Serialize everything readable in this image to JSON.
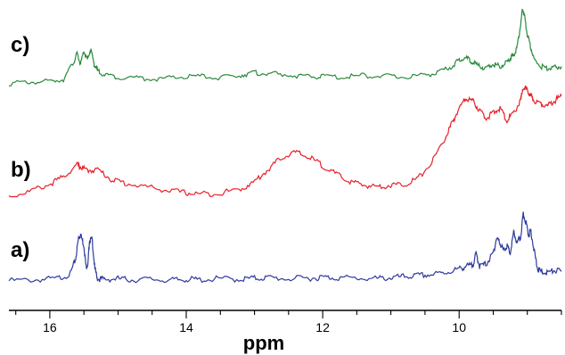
{
  "chart_data": {
    "type": "line",
    "xlabel": "ppm",
    "x_reversed": true,
    "xlim": [
      16.6,
      8.5
    ],
    "x_tick_labels": [
      "16",
      "14",
      "12",
      "10"
    ],
    "series": [
      {
        "label": "a)",
        "color": "#2f3a9e",
        "x": [
          16.6,
          16.2,
          15.9,
          15.7,
          15.62,
          15.58,
          15.55,
          15.5,
          15.47,
          15.44,
          15.42,
          15.38,
          15.34,
          15.3,
          15.2,
          15.0,
          14.8,
          14.5,
          14.2,
          14.0,
          13.8,
          13.5,
          13.2,
          13.0,
          12.8,
          12.5,
          12.2,
          12.0,
          11.8,
          11.5,
          11.2,
          11.0,
          10.8,
          10.6,
          10.4,
          10.2,
          10.0,
          9.9,
          9.8,
          9.75,
          9.7,
          9.6,
          9.5,
          9.45,
          9.4,
          9.35,
          9.3,
          9.25,
          9.2,
          9.15,
          9.1,
          9.06,
          9.02,
          8.98,
          8.95,
          8.9,
          8.85,
          8.8,
          8.7,
          8.6,
          8.5
        ],
        "y": [
          0.02,
          0.04,
          0.06,
          0.15,
          0.45,
          0.85,
          0.92,
          0.7,
          0.3,
          0.35,
          0.8,
          0.82,
          0.25,
          0.06,
          0.05,
          0.06,
          0.04,
          0.05,
          0.03,
          0.05,
          0.04,
          0.06,
          0.05,
          0.07,
          0.08,
          0.06,
          0.07,
          0.09,
          0.08,
          0.07,
          0.06,
          0.08,
          0.1,
          0.12,
          0.14,
          0.18,
          0.25,
          0.3,
          0.32,
          0.55,
          0.3,
          0.35,
          0.55,
          0.85,
          0.75,
          0.6,
          0.7,
          0.55,
          0.95,
          0.75,
          0.85,
          1.3,
          1.15,
          0.9,
          1.0,
          0.6,
          0.25,
          0.2,
          0.18,
          0.22,
          0.2
        ]
      },
      {
        "label": "b)",
        "color": "#e8202a",
        "x": [
          16.6,
          16.3,
          16.0,
          15.8,
          15.6,
          15.55,
          15.45,
          15.3,
          15.1,
          14.9,
          14.6,
          14.3,
          14.0,
          13.8,
          13.5,
          13.2,
          13.0,
          12.8,
          12.6,
          12.4,
          12.2,
          12.0,
          11.8,
          11.6,
          11.4,
          11.2,
          11.0,
          10.8,
          10.6,
          10.4,
          10.2,
          10.1,
          10.0,
          9.9,
          9.8,
          9.7,
          9.6,
          9.5,
          9.4,
          9.3,
          9.2,
          9.1,
          9.05,
          9.0,
          8.95,
          8.9,
          8.8,
          8.7,
          8.6,
          8.5
        ],
        "y": [
          0.05,
          0.15,
          0.3,
          0.45,
          0.7,
          0.65,
          0.58,
          0.6,
          0.4,
          0.32,
          0.25,
          0.18,
          0.12,
          0.1,
          0.12,
          0.2,
          0.35,
          0.6,
          0.85,
          0.95,
          0.85,
          0.68,
          0.5,
          0.35,
          0.28,
          0.25,
          0.28,
          0.3,
          0.42,
          0.75,
          1.25,
          1.55,
          1.85,
          2.05,
          2.0,
          1.8,
          1.65,
          1.75,
          1.85,
          1.6,
          1.75,
          2.0,
          2.3,
          2.2,
          2.1,
          2.0,
          1.95,
          1.9,
          2.0,
          2.1
        ]
      },
      {
        "label": "c)",
        "color": "#2a8a3c",
        "x": [
          16.6,
          16.3,
          16.0,
          15.8,
          15.65,
          15.6,
          15.55,
          15.5,
          15.45,
          15.4,
          15.35,
          15.3,
          15.2,
          15.0,
          14.7,
          14.4,
          14.1,
          13.8,
          13.5,
          13.2,
          13.0,
          12.8,
          12.5,
          12.2,
          12.0,
          11.7,
          11.4,
          11.1,
          10.8,
          10.5,
          10.3,
          10.1,
          10.0,
          9.9,
          9.8,
          9.7,
          9.6,
          9.5,
          9.4,
          9.3,
          9.25,
          9.2,
          9.15,
          9.1,
          9.07,
          9.04,
          9.0,
          8.95,
          8.9,
          8.8,
          8.7,
          8.6,
          8.5
        ],
        "y": [
          0.05,
          0.08,
          0.1,
          0.15,
          0.55,
          0.75,
          0.5,
          0.8,
          0.6,
          0.85,
          0.5,
          0.35,
          0.25,
          0.2,
          0.18,
          0.15,
          0.2,
          0.22,
          0.18,
          0.25,
          0.3,
          0.28,
          0.25,
          0.2,
          0.22,
          0.2,
          0.24,
          0.22,
          0.2,
          0.25,
          0.3,
          0.45,
          0.6,
          0.65,
          0.55,
          0.45,
          0.4,
          0.5,
          0.45,
          0.55,
          0.65,
          0.7,
          0.9,
          1.4,
          1.8,
          1.6,
          1.2,
          0.9,
          0.6,
          0.45,
          0.4,
          0.42,
          0.45
        ]
      }
    ]
  }
}
